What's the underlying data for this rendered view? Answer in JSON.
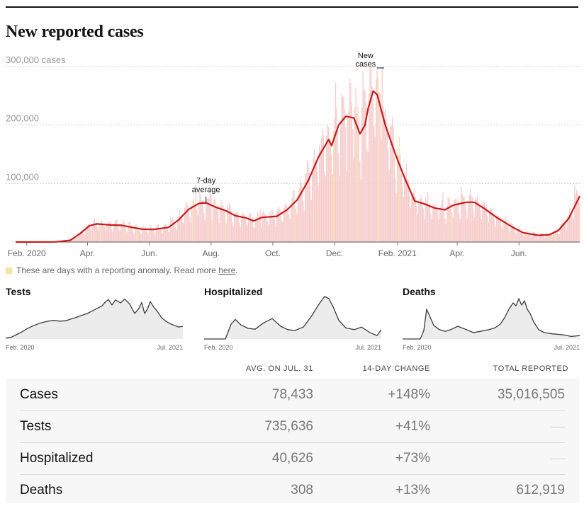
{
  "page": {
    "title": "New reported cases"
  },
  "chart_data": {
    "type": "bar",
    "title": "New reported cases",
    "y_unit": "cases",
    "ylim": [
      0,
      300000
    ],
    "yticks": [
      {
        "value": 300000,
        "label": "300,000 cases"
      },
      {
        "value": 200000,
        "label": "200,000"
      },
      {
        "value": 100000,
        "label": "100,000"
      }
    ],
    "x_range": [
      "2020-01-21",
      "2021-07-31"
    ],
    "xticks": [
      {
        "date": "2020-02-01",
        "label": "Feb. 2020"
      },
      {
        "date": "2020-04-01",
        "label": "Apr."
      },
      {
        "date": "2020-06-01",
        "label": "Jun."
      },
      {
        "date": "2020-08-01",
        "label": "Aug."
      },
      {
        "date": "2020-10-01",
        "label": "Oct."
      },
      {
        "date": "2020-12-01",
        "label": "Dec."
      },
      {
        "date": "2021-02-01",
        "label": "Feb. 2021"
      },
      {
        "date": "2021-04-01",
        "label": "Apr."
      },
      {
        "date": "2021-06-01",
        "label": "Jun."
      }
    ],
    "series": [
      {
        "name": "7-day average",
        "color": "#c51b1b",
        "points": [
          [
            "2020-01-21",
            0
          ],
          [
            "2020-03-01",
            200
          ],
          [
            "2020-03-15",
            3000
          ],
          [
            "2020-03-25",
            15000
          ],
          [
            "2020-04-03",
            28000
          ],
          [
            "2020-04-10",
            31000
          ],
          [
            "2020-04-25",
            29000
          ],
          [
            "2020-05-05",
            28500
          ],
          [
            "2020-05-15",
            25000
          ],
          [
            "2020-05-25",
            22000
          ],
          [
            "2020-06-05",
            21500
          ],
          [
            "2020-06-20",
            25000
          ],
          [
            "2020-06-30",
            38000
          ],
          [
            "2020-07-10",
            56000
          ],
          [
            "2020-07-20",
            66000
          ],
          [
            "2020-07-27",
            67000
          ],
          [
            "2020-08-05",
            60000
          ],
          [
            "2020-08-15",
            54000
          ],
          [
            "2020-08-25",
            45000
          ],
          [
            "2020-09-05",
            41000
          ],
          [
            "2020-09-12",
            36000
          ],
          [
            "2020-09-20",
            42000
          ],
          [
            "2020-10-05",
            44000
          ],
          [
            "2020-10-15",
            55000
          ],
          [
            "2020-10-25",
            72000
          ],
          [
            "2020-11-05",
            105000
          ],
          [
            "2020-11-15",
            145000
          ],
          [
            "2020-11-25",
            175000
          ],
          [
            "2020-11-28",
            165000
          ],
          [
            "2020-12-05",
            200000
          ],
          [
            "2020-12-12",
            215000
          ],
          [
            "2020-12-20",
            212000
          ],
          [
            "2020-12-26",
            185000
          ],
          [
            "2020-12-31",
            200000
          ],
          [
            "2021-01-03",
            228000
          ],
          [
            "2021-01-08",
            258000
          ],
          [
            "2021-01-12",
            252000
          ],
          [
            "2021-01-20",
            200000
          ],
          [
            "2021-01-30",
            150000
          ],
          [
            "2021-02-08",
            110000
          ],
          [
            "2021-02-18",
            70000
          ],
          [
            "2021-02-28",
            65000
          ],
          [
            "2021-03-10",
            58000
          ],
          [
            "2021-03-20",
            55000
          ],
          [
            "2021-03-28",
            63000
          ],
          [
            "2021-04-10",
            68000
          ],
          [
            "2021-04-18",
            68000
          ],
          [
            "2021-04-28",
            57000
          ],
          [
            "2021-05-10",
            42000
          ],
          [
            "2021-05-25",
            26000
          ],
          [
            "2021-06-05",
            16000
          ],
          [
            "2021-06-20",
            11500
          ],
          [
            "2021-07-01",
            12500
          ],
          [
            "2021-07-10",
            20000
          ],
          [
            "2021-07-20",
            40000
          ],
          [
            "2021-07-31",
            78433
          ]
        ]
      },
      {
        "name": "New cases",
        "color": "#f7cdcd",
        "note": "daily bars scatter around the 7-day average; peak about 300,000 in early January 2021"
      }
    ],
    "annotations": [
      {
        "lines": [
          "7-day",
          "average"
        ],
        "date": "2020-07-27",
        "value": 67000
      },
      {
        "lines": [
          "New",
          "cases"
        ],
        "date": "2021-01-02",
        "value": 300000
      }
    ]
  },
  "legend": {
    "anomaly_text": "These are days with a reporting anomaly. Read more",
    "link_text": "here",
    "period": "."
  },
  "mini_charts": [
    {
      "title": "Tests",
      "start_label": "Feb. 2020",
      "end_label": "Jul. 2021",
      "points": [
        [
          0,
          2
        ],
        [
          8,
          4
        ],
        [
          15,
          10
        ],
        [
          22,
          16
        ],
        [
          30,
          24
        ],
        [
          40,
          32
        ],
        [
          50,
          38
        ],
        [
          60,
          42
        ],
        [
          68,
          44
        ],
        [
          76,
          42
        ],
        [
          85,
          43
        ],
        [
          92,
          47
        ],
        [
          100,
          51
        ],
        [
          108,
          56
        ],
        [
          115,
          60
        ],
        [
          122,
          66
        ],
        [
          130,
          73
        ],
        [
          136,
          78
        ],
        [
          140,
          86
        ],
        [
          145,
          93
        ],
        [
          150,
          80
        ],
        [
          155,
          92
        ],
        [
          162,
          85
        ],
        [
          168,
          94
        ],
        [
          175,
          82
        ],
        [
          182,
          60
        ],
        [
          188,
          72
        ],
        [
          192,
          86
        ],
        [
          196,
          60
        ],
        [
          200,
          70
        ],
        [
          204,
          88
        ],
        [
          209,
          75
        ],
        [
          214,
          65
        ],
        [
          220,
          50
        ],
        [
          226,
          42
        ],
        [
          232,
          36
        ],
        [
          238,
          32
        ],
        [
          244,
          28
        ],
        [
          250,
          30
        ]
      ]
    },
    {
      "title": "Hospitalized",
      "start_label": "Feb. 2020",
      "end_label": "Jul. 2021",
      "points": [
        [
          0,
          0
        ],
        [
          30,
          0
        ],
        [
          38,
          35
        ],
        [
          44,
          46
        ],
        [
          52,
          33
        ],
        [
          62,
          25
        ],
        [
          72,
          23
        ],
        [
          84,
          38
        ],
        [
          96,
          48
        ],
        [
          108,
          30
        ],
        [
          118,
          22
        ],
        [
          128,
          20
        ],
        [
          140,
          28
        ],
        [
          152,
          55
        ],
        [
          162,
          82
        ],
        [
          170,
          100
        ],
        [
          176,
          95
        ],
        [
          182,
          76
        ],
        [
          190,
          44
        ],
        [
          200,
          26
        ],
        [
          212,
          22
        ],
        [
          222,
          28
        ],
        [
          234,
          15
        ],
        [
          244,
          8
        ],
        [
          250,
          22
        ]
      ]
    },
    {
      "title": "Deaths",
      "start_label": "Feb. 2020",
      "end_label": "Jul. 2021",
      "points": [
        [
          0,
          0
        ],
        [
          25,
          0
        ],
        [
          30,
          20
        ],
        [
          34,
          70
        ],
        [
          38,
          55
        ],
        [
          44,
          32
        ],
        [
          52,
          22
        ],
        [
          60,
          18
        ],
        [
          68,
          22
        ],
        [
          78,
          30
        ],
        [
          90,
          22
        ],
        [
          100,
          15
        ],
        [
          110,
          18
        ],
        [
          122,
          22
        ],
        [
          130,
          26
        ],
        [
          138,
          35
        ],
        [
          144,
          50
        ],
        [
          150,
          70
        ],
        [
          156,
          85
        ],
        [
          160,
          78
        ],
        [
          164,
          95
        ],
        [
          168,
          80
        ],
        [
          172,
          90
        ],
        [
          176,
          70
        ],
        [
          180,
          60
        ],
        [
          185,
          40
        ],
        [
          192,
          22
        ],
        [
          200,
          15
        ],
        [
          212,
          12
        ],
        [
          226,
          10
        ],
        [
          238,
          6
        ],
        [
          250,
          8
        ]
      ]
    }
  ],
  "table": {
    "headers": {
      "avg": "AVG. ON JUL. 31",
      "change": "14-DAY CHANGE",
      "total": "TOTAL REPORTED"
    },
    "rows": [
      {
        "label": "Cases",
        "avg": "78,433",
        "change": "+148%",
        "total": "35,016,505"
      },
      {
        "label": "Tests",
        "avg": "735,636",
        "change": "+41%",
        "total": ""
      },
      {
        "label": "Hospitalized",
        "avg": "40,626",
        "change": "+73%",
        "total": ""
      },
      {
        "label": "Deaths",
        "avg": "308",
        "change": "+13%",
        "total": "612,919"
      }
    ]
  },
  "colors": {
    "average_line": "#c51b1b",
    "daily_bars": "#f7cdcd",
    "anomaly": "#f6e3a3",
    "mini_fill": "#ececec",
    "mini_line": "#3a3a3a"
  }
}
